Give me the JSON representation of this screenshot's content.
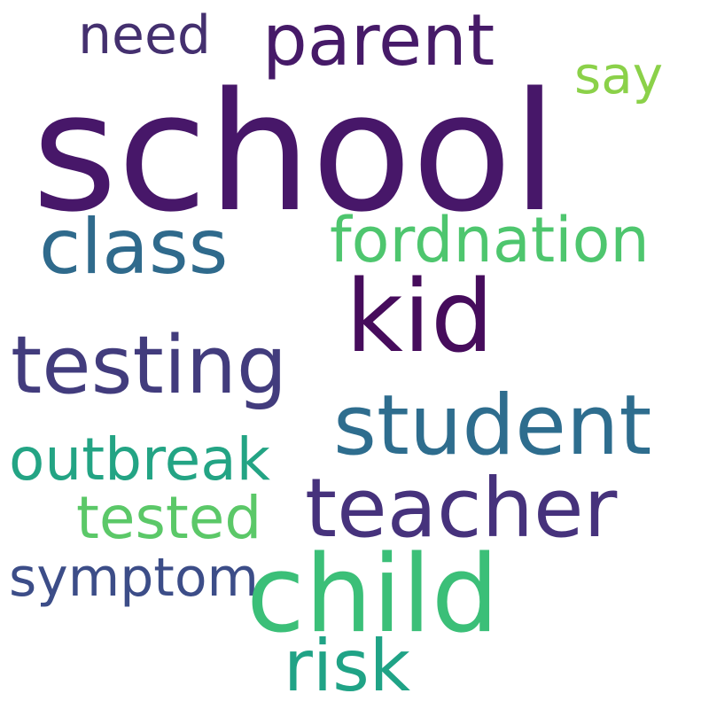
{
  "words": [
    {
      "text": "school",
      "color": "#471769"
    },
    {
      "text": "parent",
      "color": "#461a68"
    },
    {
      "text": "need",
      "color": "#44306f"
    },
    {
      "text": "say",
      "color": "#8bd149"
    },
    {
      "text": "class",
      "color": "#2f6a8c"
    },
    {
      "text": "fordnation",
      "color": "#4ec66e"
    },
    {
      "text": "kid",
      "color": "#460c5c"
    },
    {
      "text": "testing",
      "color": "#423c7d"
    },
    {
      "text": "student",
      "color": "#2e6d8e"
    },
    {
      "text": "outbreak",
      "color": "#23a484"
    },
    {
      "text": "teacher",
      "color": "#46327c"
    },
    {
      "text": "tested",
      "color": "#5bc868"
    },
    {
      "text": "symptom",
      "color": "#3c4d88"
    },
    {
      "text": "child",
      "color": "#3bbf78"
    },
    {
      "text": "risk",
      "color": "#20a386"
    }
  ]
}
